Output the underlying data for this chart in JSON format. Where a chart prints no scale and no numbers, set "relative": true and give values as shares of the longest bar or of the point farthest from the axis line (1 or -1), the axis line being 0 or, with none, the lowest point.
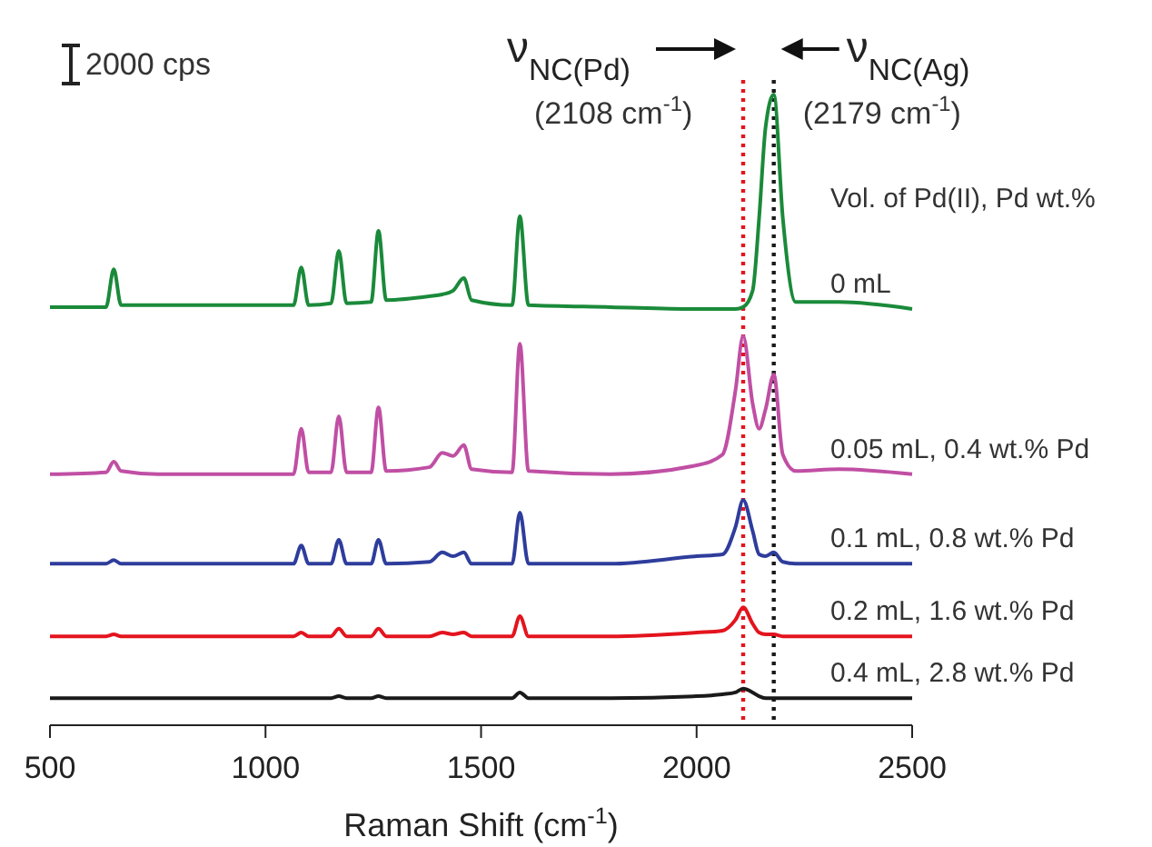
{
  "chart_data": {
    "type": "line",
    "relative": true,
    "xlabel": "Raman Shift (cm$^{-1}$)",
    "xlim": [
      500,
      2500
    ],
    "xticks": [
      500,
      1000,
      1500,
      2000,
      2500
    ],
    "legend_title": "Vol. of Pd(II), Pd wt.%",
    "grid": false,
    "marker": "none",
    "line_style": "solid",
    "x": [
      500,
      630,
      648,
      665,
      750,
      1065,
      1083,
      1100,
      1152,
      1170,
      1188,
      1245,
      1262,
      1280,
      1380,
      1410,
      1435,
      1460,
      1478,
      1572,
      1590,
      1610,
      1800,
      2000,
      2060,
      2090,
      2108,
      2130,
      2145,
      2160,
      2179,
      2200,
      2230,
      2330,
      2500
    ],
    "series": [
      {
        "name": "0 mL",
        "color": "#1a8a3a",
        "values": [
          0.663,
          0.663,
          0.723,
          0.666,
          0.666,
          0.666,
          0.726,
          0.666,
          0.669,
          0.752,
          0.669,
          0.671,
          0.784,
          0.674,
          0.68,
          0.683,
          0.689,
          0.709,
          0.674,
          0.666,
          0.807,
          0.666,
          0.663,
          0.66,
          0.66,
          0.66,
          0.663,
          0.689,
          0.804,
          0.948,
          1,
          0.804,
          0.671,
          0.671,
          0.66
        ]
      },
      {
        "name": "0.05 mL, 0.4 wt.% Pd",
        "color": "#c04fa4",
        "values": [
          0.398,
          0.401,
          0.418,
          0.403,
          0.398,
          0.398,
          0.47,
          0.401,
          0.401,
          0.49,
          0.401,
          0.401,
          0.504,
          0.403,
          0.409,
          0.432,
          0.427,
          0.444,
          0.406,
          0.401,
          0.605,
          0.403,
          0.398,
          0.412,
          0.429,
          0.53,
          0.617,
          0.51,
          0.47,
          0.501,
          0.556,
          0.429,
          0.403,
          0.406,
          0.398
        ]
      },
      {
        "name": "0.1 mL, 0.8 wt.% Pd",
        "color": "#2e3d9c",
        "values": [
          0.256,
          0.256,
          0.262,
          0.256,
          0.256,
          0.256,
          0.285,
          0.256,
          0.256,
          0.294,
          0.256,
          0.256,
          0.294,
          0.256,
          0.259,
          0.274,
          0.268,
          0.274,
          0.256,
          0.256,
          0.337,
          0.256,
          0.256,
          0.268,
          0.271,
          0.314,
          0.357,
          0.308,
          0.271,
          0.268,
          0.274,
          0.259,
          0.256,
          0.256,
          0.256
        ]
      },
      {
        "name": "0.2 mL, 1.6 wt.% Pd",
        "color": "#e3141e",
        "values": [
          0.141,
          0.141,
          0.144,
          0.141,
          0.141,
          0.141,
          0.147,
          0.141,
          0.141,
          0.153,
          0.141,
          0.141,
          0.153,
          0.141,
          0.141,
          0.147,
          0.144,
          0.147,
          0.141,
          0.141,
          0.173,
          0.141,
          0.141,
          0.147,
          0.15,
          0.167,
          0.187,
          0.161,
          0.147,
          0.144,
          0.144,
          0.141,
          0.141,
          0.141,
          0.141
        ]
      },
      {
        "name": "0.4 mL, 2.8 wt.% Pd",
        "color": "#1a1a1a",
        "values": [
          0.043,
          0.043,
          0.043,
          0.043,
          0.043,
          0.043,
          0.043,
          0.043,
          0.043,
          0.046,
          0.043,
          0.043,
          0.046,
          0.043,
          0.043,
          0.043,
          0.043,
          0.043,
          0.043,
          0.043,
          0.052,
          0.043,
          0.043,
          0.046,
          0.049,
          0.052,
          0.058,
          0.052,
          0.046,
          0.043,
          0.043,
          0.043,
          0.043,
          0.043,
          0.043
        ]
      }
    ],
    "ref_lines": [
      {
        "axis": "x",
        "value": 2108,
        "label": "ν$_{NC(Pd)}$",
        "color": "#e3141e",
        "line_style": "dotted"
      },
      {
        "axis": "x",
        "value": 2179,
        "label": "ν$_{NC(Ag)}$",
        "color": "#1a1a1a",
        "line_style": "dotted"
      }
    ],
    "annotations": [
      {
        "text": "(2108 cm$^{-1}$)",
        "x": 2108
      },
      {
        "text": "(2179 cm$^{-1}$)",
        "x": 2179
      },
      "2000 cps"
    ]
  }
}
